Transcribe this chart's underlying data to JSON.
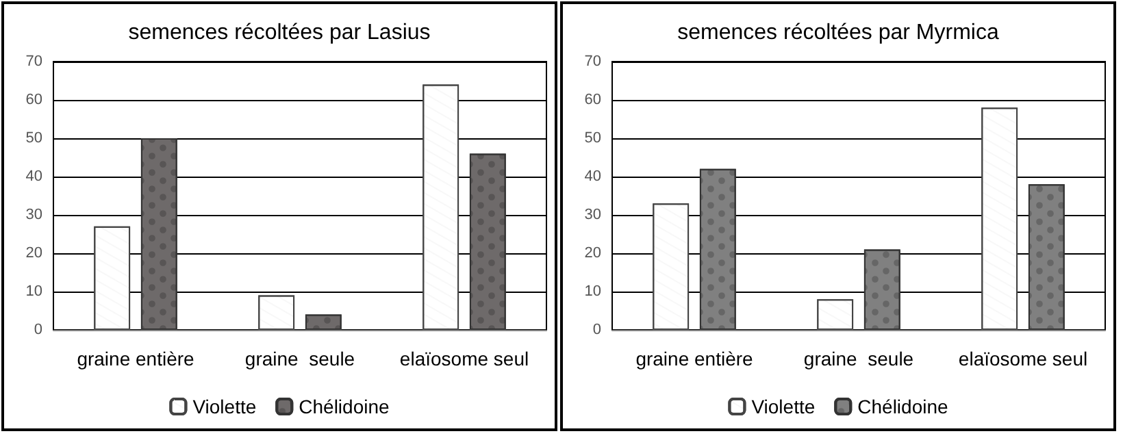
{
  "chart_data": [
    {
      "type": "bar",
      "title": "semences récoltées par Lasius",
      "categories": [
        "graine entière",
        "graine  seule",
        "elaïosome seul"
      ],
      "series": [
        {
          "name": "Violette",
          "color": "#ffffff",
          "values": [
            27,
            9,
            64
          ]
        },
        {
          "name": "Chélidoine",
          "color": "#6e6a6a",
          "values": [
            50,
            4,
            46
          ]
        }
      ],
      "ylim": [
        0,
        70
      ],
      "yticks": [
        0,
        10,
        20,
        30,
        40,
        50,
        60,
        70
      ],
      "grid": "y",
      "legend": "bottom"
    },
    {
      "type": "bar",
      "title": "semences récoltées par Myrmica",
      "categories": [
        "graine entière",
        "graine  seule",
        "elaïosome seul"
      ],
      "series": [
        {
          "name": "Violette",
          "color": "#ffffff",
          "values": [
            33,
            8,
            58
          ]
        },
        {
          "name": "Chélidoine",
          "color": "#808080",
          "values": [
            42,
            21,
            38
          ]
        }
      ],
      "ylim": [
        0,
        70
      ],
      "yticks": [
        0,
        10,
        20,
        30,
        40,
        50,
        60,
        70
      ],
      "grid": "y",
      "legend": "bottom"
    }
  ]
}
